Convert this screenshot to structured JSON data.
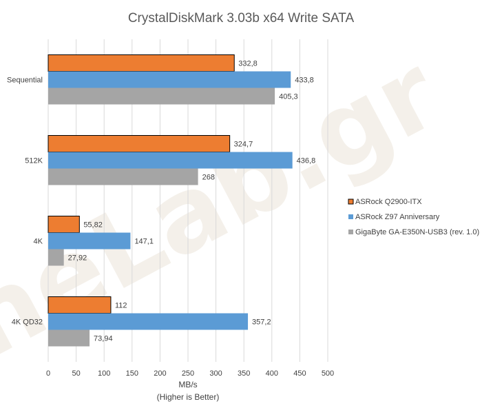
{
  "chart_data": {
    "type": "bar",
    "orientation": "horizontal",
    "title": "CrystalDiskMark 3.03b x64 Write SATA",
    "xlabel": "MB/s",
    "xlabel_note": "(Higher is Better)",
    "ylabel": "",
    "xlim": [
      0,
      500
    ],
    "xticks": [
      0,
      50,
      100,
      150,
      200,
      250,
      300,
      350,
      400,
      450,
      500
    ],
    "categories": [
      "Sequential",
      "512K",
      "4K",
      "4K QD32"
    ],
    "series": [
      {
        "name": "ASRock Q2900-ITX",
        "color": "#ED7D31",
        "values": [
          332.8,
          324.7,
          55.82,
          112
        ],
        "labels": [
          "332,8",
          "324,7",
          "55,82",
          "112"
        ]
      },
      {
        "name": "ASRock Z97 Anniversary",
        "color": "#5B9BD5",
        "values": [
          433.8,
          436.8,
          147.1,
          357.2
        ],
        "labels": [
          "433,8",
          "436,8",
          "147,1",
          "357,2"
        ]
      },
      {
        "name": "GigaByte GA-E350N-USB3 (rev. 1.0)",
        "color": "#A5A5A5",
        "values": [
          405.3,
          268,
          27.92,
          73.94
        ],
        "labels": [
          "405,3",
          "268",
          "27,92",
          "73,94"
        ]
      }
    ],
    "grid": true,
    "legend_position": "right",
    "watermark": "TheLab.gr"
  }
}
